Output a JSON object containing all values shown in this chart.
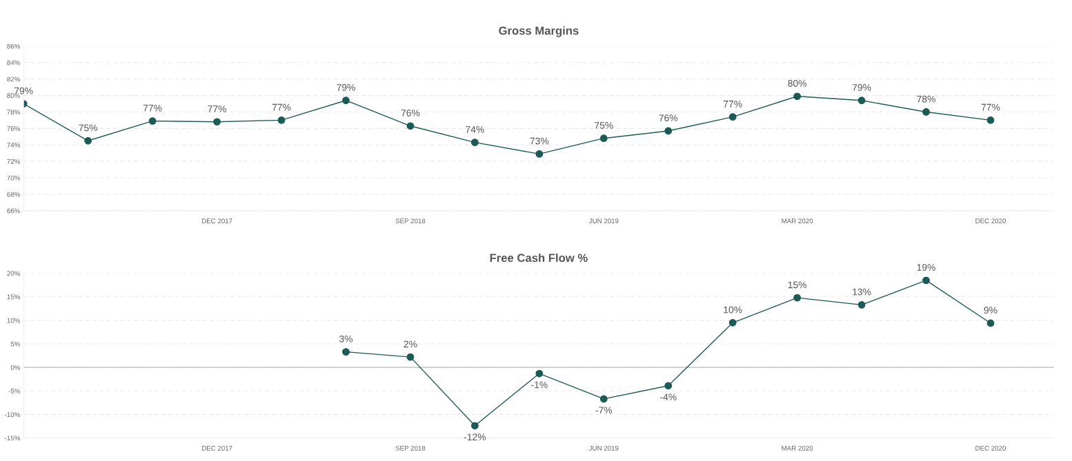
{
  "chart_data": [
    {
      "type": "line",
      "title": "Gross Margins",
      "categories": [
        null,
        null,
        null,
        "DEC 2017",
        null,
        null,
        "SEP 2018",
        null,
        null,
        "JUN 2019",
        null,
        null,
        "MAR 2020",
        null,
        null,
        "DEC 2020"
      ],
      "series": [
        {
          "color": "#1b5a55",
          "values": [
            79.0,
            74.5,
            76.9,
            76.8,
            77.0,
            79.4,
            76.3,
            74.3,
            72.9,
            74.8,
            75.7,
            77.4,
            79.9,
            79.4,
            78.0,
            77.0
          ],
          "value_labels": [
            "79%",
            "75%",
            "77%",
            "77%",
            "77%",
            "79%",
            "76%",
            "74%",
            "73%",
            "75%",
            "76%",
            "77%",
            "80%",
            "79%",
            "78%",
            "77%"
          ]
        }
      ],
      "ylim": [
        66,
        86
      ],
      "yticks": [
        {
          "value": 66,
          "label": "66%"
        },
        {
          "value": 68,
          "label": "68%"
        },
        {
          "value": 70,
          "label": "70%"
        },
        {
          "value": 72,
          "label": "72%"
        },
        {
          "value": 74,
          "label": "74%"
        },
        {
          "value": 76,
          "label": "76%"
        },
        {
          "value": 78,
          "label": "78%"
        },
        {
          "value": 80,
          "label": "80%"
        },
        {
          "value": 82,
          "label": "82%"
        },
        {
          "value": 84,
          "label": "84%"
        },
        {
          "value": 86,
          "label": "86%"
        }
      ],
      "grid": "y",
      "marker": "circle",
      "line_style": "solid"
    },
    {
      "type": "line",
      "title": "Free Cash Flow %",
      "categories": [
        null,
        null,
        null,
        "DEC 2017",
        null,
        null,
        "SEP 2018",
        null,
        null,
        "JUN 2019",
        null,
        null,
        "MAR 2020",
        null,
        null,
        "DEC 2020"
      ],
      "series": [
        {
          "color": "#1b5a55",
          "values": [
            null,
            null,
            null,
            null,
            null,
            3.3,
            2.2,
            -12.4,
            -1.3,
            -6.7,
            -3.9,
            9.5,
            14.8,
            13.3,
            18.5,
            9.4
          ],
          "value_labels": [
            null,
            null,
            null,
            null,
            null,
            "3%",
            "2%",
            "-12%",
            "-1%",
            "-7%",
            "-4%",
            "10%",
            "15%",
            "13%",
            "19%",
            "9%"
          ]
        }
      ],
      "ylim": [
        -15,
        20
      ],
      "yticks": [
        {
          "value": -15,
          "label": "-15%"
        },
        {
          "value": -10,
          "label": "-10%"
        },
        {
          "value": -5,
          "label": "-5%"
        },
        {
          "value": 0,
          "label": "0%"
        },
        {
          "value": 5,
          "label": "5%"
        },
        {
          "value": 10,
          "label": "10%"
        },
        {
          "value": 15,
          "label": "15%"
        },
        {
          "value": 20,
          "label": "20%"
        }
      ],
      "ref_lines": [
        {
          "axis": "y",
          "value": 0,
          "color": "#bbbbbb",
          "line_style": "solid"
        }
      ],
      "grid": "y",
      "marker": "circle",
      "line_style": "solid"
    }
  ]
}
